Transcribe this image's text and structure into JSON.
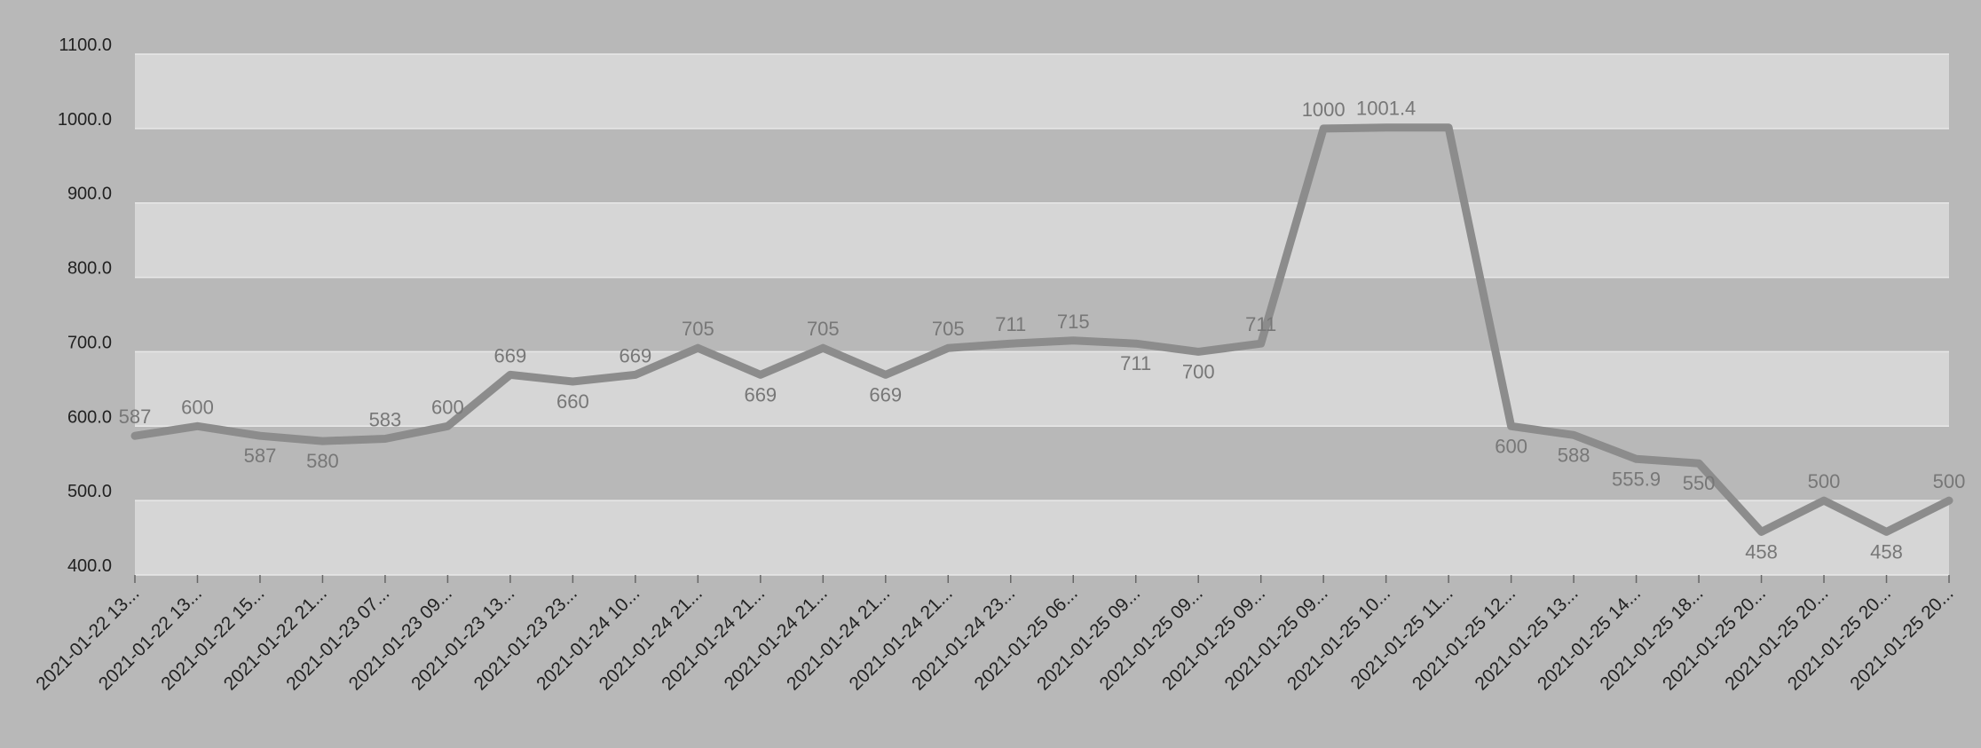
{
  "chart_data": {
    "type": "line",
    "title": "",
    "xlabel": "",
    "ylabel": "",
    "ylim": [
      400,
      1100
    ],
    "y_ticks": [
      "400.0",
      "500.0",
      "600.0",
      "700.0",
      "800.0",
      "900.0",
      "1000.0",
      "1100.0"
    ],
    "grid": "horizontal bands",
    "legend": "none",
    "colors": {
      "background": "#b8b8b8",
      "band_light": "#d6d6d6",
      "band_dark": "#b8b8b8",
      "gridline": "#e8e8e8",
      "line": "#8c8c8c",
      "data_label": "#777777",
      "tick_label": "#222222"
    },
    "categories": [
      "2021-01-22 13...",
      "2021-01-22 13...",
      "2021-01-22 15...",
      "2021-01-22 21...",
      "2021-01-23 07...",
      "2021-01-23 09...",
      "2021-01-23 13...",
      "2021-01-23 23...",
      "2021-01-24 10...",
      "2021-01-24 21...",
      "2021-01-24 21...",
      "2021-01-24 21...",
      "2021-01-24 21...",
      "2021-01-24 21...",
      "2021-01-24 23...",
      "2021-01-25 06...",
      "2021-01-25 09...",
      "2021-01-25 09...",
      "2021-01-25 09...",
      "2021-01-25 09...",
      "2021-01-25 10...",
      "2021-01-25 11...",
      "2021-01-25 12...",
      "2021-01-25 13...",
      "2021-01-25 14...",
      "2021-01-25 18...",
      "2021-01-25 20...",
      "2021-01-25 20...",
      "2021-01-25 20...",
      "2021-01-25 20..."
    ],
    "series": [
      {
        "values": [
          587,
          600,
          587,
          580,
          583,
          600,
          669,
          660,
          669,
          705,
          669,
          705,
          669,
          705,
          711,
          715,
          711,
          700,
          711,
          1000,
          1001.4,
          1001.4,
          600,
          588,
          555.9,
          550,
          458,
          500,
          458,
          500
        ],
        "labels": [
          "587",
          "600",
          "587",
          "580",
          "583",
          "600",
          "669",
          "660",
          "669",
          "705",
          "669",
          "705",
          "669",
          "705",
          "711",
          "715",
          "711",
          "700",
          "711",
          "1000",
          "1001.4",
          "",
          "600",
          "588",
          "555.9",
          "550",
          "458",
          "500",
          "458",
          "500"
        ],
        "label_positions": [
          "above",
          "above",
          "below",
          "below",
          "above",
          "above",
          "above",
          "below",
          "above",
          "above",
          "below",
          "above",
          "below",
          "above",
          "above",
          "above",
          "below",
          "below",
          "above",
          "above",
          "above",
          "above",
          "below",
          "below",
          "below",
          "below",
          "below",
          "above",
          "below",
          "above"
        ]
      }
    ]
  }
}
